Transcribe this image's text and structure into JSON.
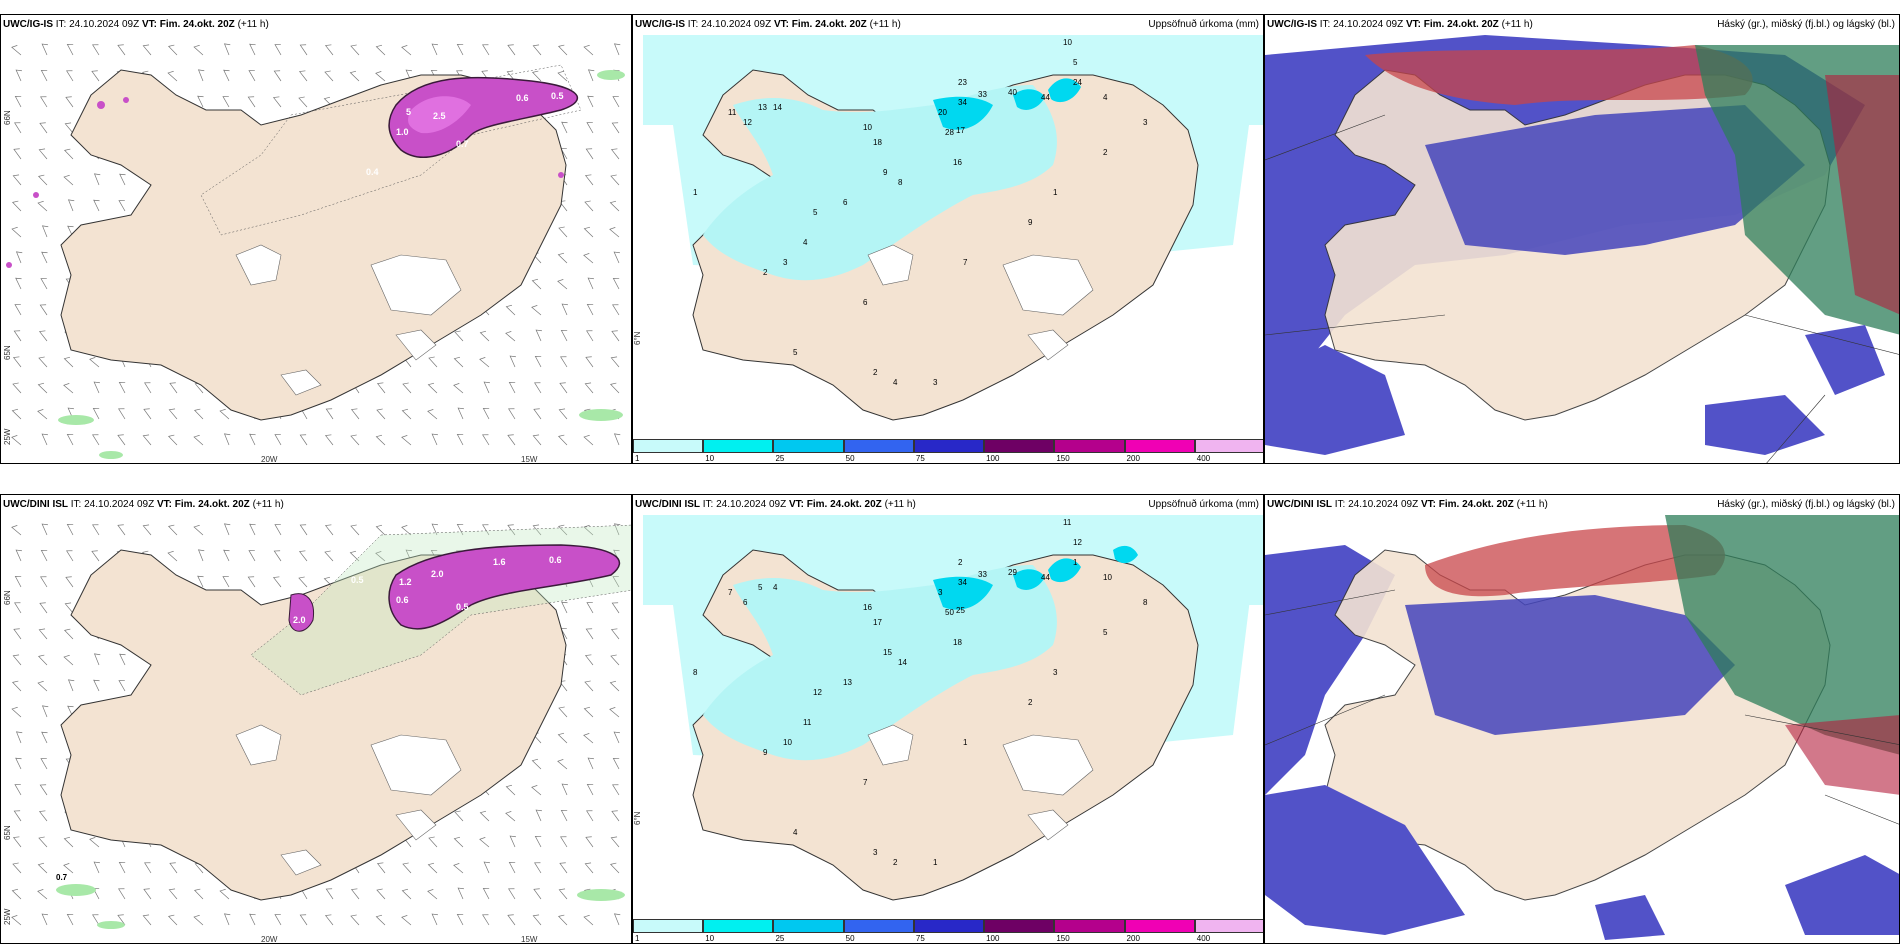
{
  "panels": [
    {
      "model": "UWC/IG-IS",
      "it_label": "IT: 24.10.2024 09Z",
      "vt_label": "VT: Fim. 24.okt. 20Z",
      "lead": "(+11 h)",
      "right_label": "",
      "lon_labels": [
        "20W",
        "15W"
      ],
      "lat_labels": [
        "66N",
        "65N",
        "25W"
      ],
      "values": [
        "5",
        "2.5",
        "0.6",
        "0.5",
        "1.0",
        "0.7",
        "0.4"
      ]
    },
    {
      "model": "UWC/IG-IS",
      "it_label": "IT: 24.10.2024 09Z",
      "vt_label": "VT: Fim. 24.okt. 20Z",
      "lead": "(+11 h)",
      "right_label": "Uppsöfnuð úrkoma (mm)",
      "lon_labels": [],
      "lat_labels": [
        "6°N"
      ],
      "values": [
        "33",
        "34",
        "44",
        "40",
        "28",
        "17",
        "16",
        "18",
        "10",
        "9",
        "8",
        "6",
        "5",
        "4",
        "3",
        "2",
        "1",
        "11",
        "12",
        "13",
        "14",
        "20",
        "23",
        "24",
        "10",
        "5",
        "4",
        "3",
        "2",
        "1",
        "9",
        "7",
        "6",
        "5",
        "2",
        "4",
        "3"
      ]
    },
    {
      "model": "UWC/IG-IS",
      "it_label": "IT: 24.10.2024 09Z",
      "vt_label": "VT: Fim. 24.okt. 20Z",
      "lead": "(+11 h)",
      "right_label": "Háský (gr.), miðský (fj.bl.) og lágský (bl.)",
      "lon_labels": [],
      "lat_labels": [],
      "values": []
    },
    {
      "model": "UWC/DINI ISL",
      "it_label": "IT: 24.10.2024 09Z",
      "vt_label": "VT: Fim. 24.okt. 20Z",
      "lead": "(+11 h)",
      "right_label": "",
      "lon_labels": [
        "20W",
        "15W"
      ],
      "lat_labels": [
        "66N",
        "65N",
        "25W"
      ],
      "values": [
        "2.0",
        "1.6",
        "0.6",
        "1.2",
        "0.6",
        "0.5",
        "2.0",
        "0.5",
        "0.7"
      ]
    },
    {
      "model": "UWC/DINI ISL",
      "it_label": "IT: 24.10.2024 09Z",
      "vt_label": "VT: Fim. 24.okt. 20Z",
      "lead": "(+11 h)",
      "right_label": "Uppsöfnuð úrkoma (mm)",
      "lon_labels": [],
      "lat_labels": [
        "6°N"
      ],
      "values": [
        "33",
        "34",
        "44",
        "29",
        "50",
        "25",
        "18",
        "17",
        "16",
        "15",
        "14",
        "13",
        "12",
        "11",
        "10",
        "9",
        "8",
        "7",
        "6",
        "5",
        "4",
        "3",
        "2",
        "1",
        "11",
        "12",
        "10",
        "8",
        "5",
        "3",
        "2",
        "1",
        "7",
        "4",
        "3",
        "2",
        "1"
      ]
    },
    {
      "model": "UWC/DINI ISL",
      "it_label": "IT: 24.10.2024 09Z",
      "vt_label": "VT: Fim. 24.okt. 20Z",
      "lead": "(+11 h)",
      "right_label": "Háský (gr.), miðský (fj.bl.) og lágský (bl.)",
      "lon_labels": [],
      "lat_labels": [],
      "values": []
    }
  ],
  "legend": {
    "ticks": [
      "1",
      "10",
      "25",
      "50",
      "75",
      "100",
      "150",
      "200",
      "400"
    ],
    "colors": [
      "#c8fafa",
      "#00f0f0",
      "#00c8f0",
      "#3264f0",
      "#2828c8",
      "#6e0064",
      "#b4008c",
      "#f000b4",
      "#f0b4f0"
    ]
  },
  "colors": {
    "land": "#f3e3d2",
    "precip_light": "#b4f5f5",
    "precip_medium": "#78e6f0",
    "low_cloud": "#3c3cc8",
    "mid_cloud": "#b41e3c",
    "high_cloud": "#1e8c50",
    "icing": "#c850c8"
  }
}
